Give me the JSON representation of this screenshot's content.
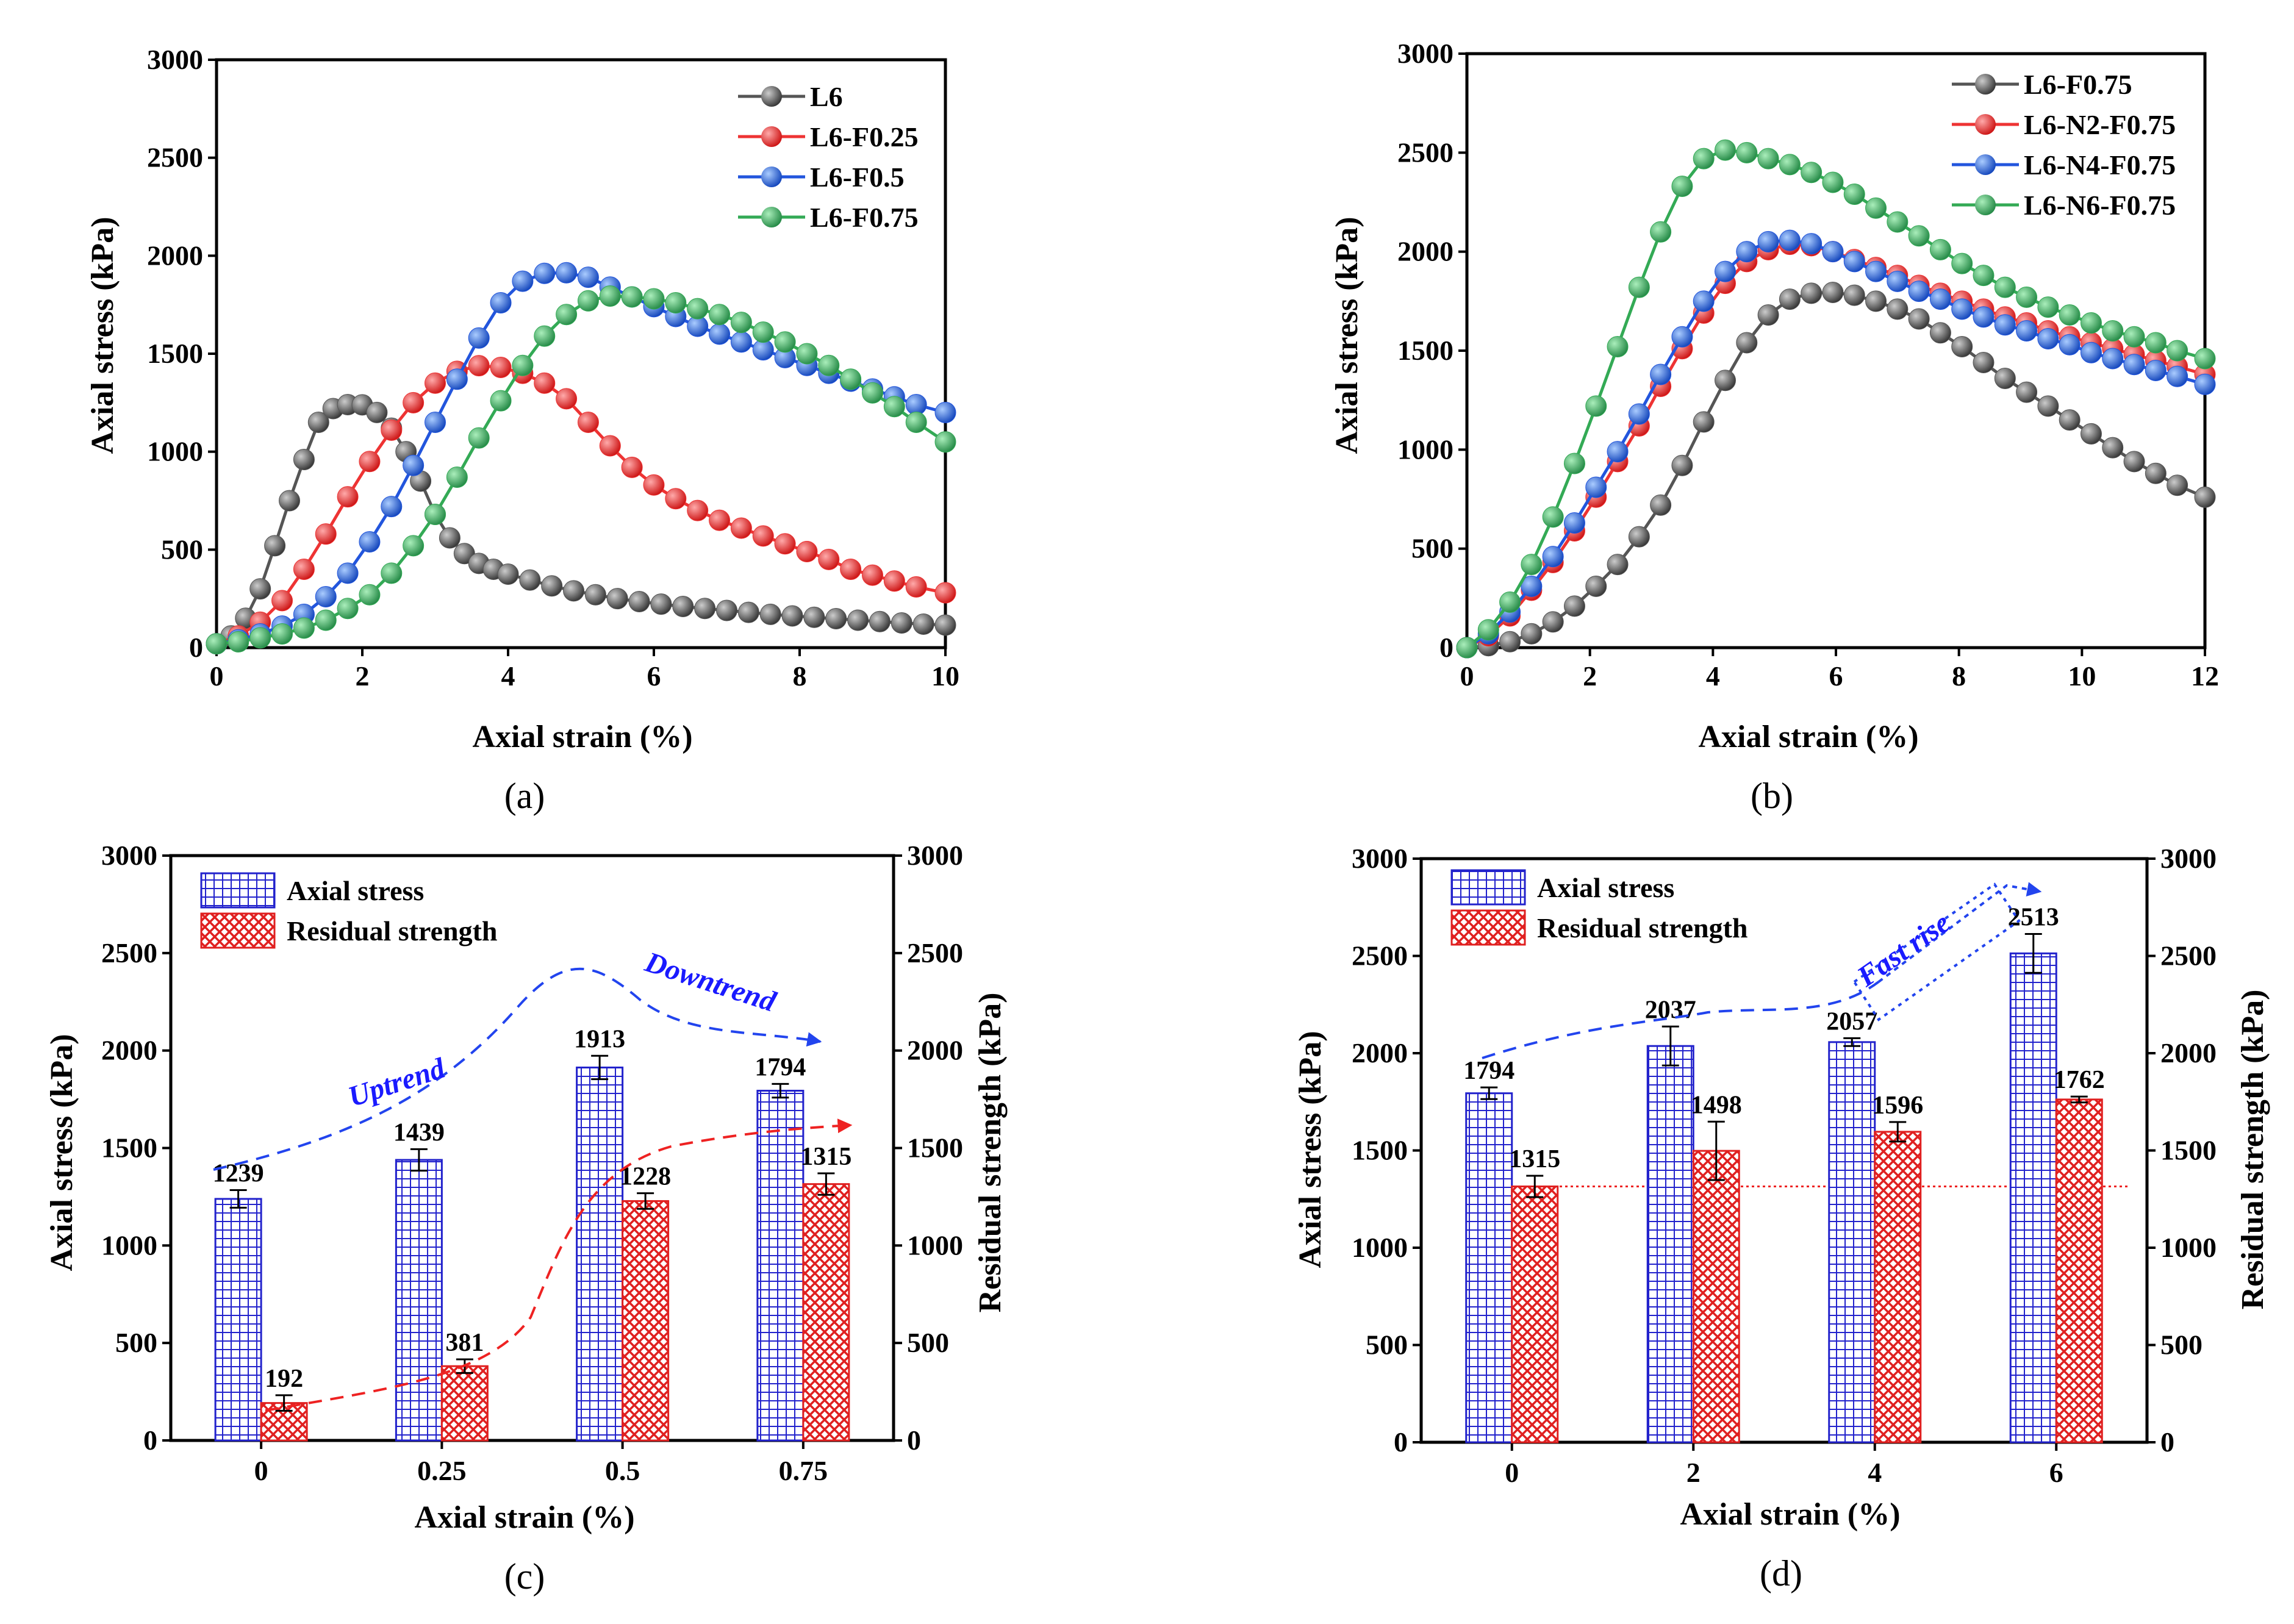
{
  "colors": {
    "black_series": "#555555",
    "red_series": "#ee3333",
    "blue_series": "#2255dd",
    "green_series": "#33aa55",
    "bar_blue": "#2222cc",
    "bar_red": "#e02020",
    "trend_blue": "#2244ee",
    "trend_red": "#ee2222"
  },
  "chart_data": [
    {
      "id": "a",
      "panel_label": "(a)",
      "type": "line",
      "xlabel": "Axial strain (%)",
      "ylabel": "Axial stress (kPa)",
      "xlim": [
        0,
        10
      ],
      "ylim": [
        0,
        3000
      ],
      "xticks": [
        0,
        2,
        4,
        6,
        8,
        10
      ],
      "yticks": [
        0,
        500,
        1000,
        1500,
        2000,
        2500,
        3000
      ],
      "legend_position": "top-right",
      "series": [
        {
          "name": "L6",
          "color_key": "black_series",
          "x": [
            0,
            0.2,
            0.4,
            0.6,
            0.8,
            1.0,
            1.2,
            1.4,
            1.6,
            1.8,
            2.0,
            2.2,
            2.4,
            2.6,
            2.8,
            3.0,
            3.2,
            3.4,
            3.6,
            3.8,
            4.0,
            4.3,
            4.6,
            4.9,
            5.2,
            5.5,
            5.8,
            6.1,
            6.4,
            6.7,
            7.0,
            7.3,
            7.6,
            7.9,
            8.2,
            8.5,
            8.8,
            9.1,
            9.4,
            9.7,
            10.0
          ],
          "y": [
            20,
            60,
            150,
            300,
            520,
            750,
            960,
            1150,
            1220,
            1240,
            1239,
            1200,
            1120,
            1000,
            850,
            680,
            560,
            480,
            430,
            400,
            375,
            345,
            315,
            290,
            270,
            250,
            235,
            222,
            210,
            200,
            190,
            180,
            170,
            162,
            155,
            148,
            140,
            133,
            126,
            120,
            115
          ]
        },
        {
          "name": "L6-F0.25",
          "color_key": "red_series",
          "x": [
            0,
            0.3,
            0.6,
            0.9,
            1.2,
            1.5,
            1.8,
            2.1,
            2.4,
            2.7,
            3.0,
            3.3,
            3.6,
            3.9,
            4.2,
            4.5,
            4.8,
            5.1,
            5.4,
            5.7,
            6.0,
            6.3,
            6.6,
            6.9,
            7.2,
            7.5,
            7.8,
            8.1,
            8.4,
            8.7,
            9.0,
            9.3,
            9.6,
            10.0
          ],
          "y": [
            20,
            60,
            130,
            240,
            400,
            580,
            770,
            950,
            1110,
            1250,
            1350,
            1410,
            1439,
            1430,
            1400,
            1350,
            1270,
            1150,
            1030,
            920,
            830,
            760,
            700,
            650,
            610,
            570,
            530,
            490,
            450,
            400,
            370,
            340,
            310,
            280
          ]
        },
        {
          "name": "L6-F0.5",
          "color_key": "blue_series",
          "x": [
            0,
            0.3,
            0.6,
            0.9,
            1.2,
            1.5,
            1.8,
            2.1,
            2.4,
            2.7,
            3.0,
            3.3,
            3.6,
            3.9,
            4.2,
            4.5,
            4.8,
            5.1,
            5.4,
            5.7,
            6.0,
            6.3,
            6.6,
            6.9,
            7.2,
            7.5,
            7.8,
            8.1,
            8.4,
            8.7,
            9.0,
            9.3,
            9.6,
            10.0
          ],
          "y": [
            20,
            40,
            70,
            110,
            170,
            260,
            380,
            540,
            720,
            930,
            1150,
            1370,
            1580,
            1760,
            1870,
            1910,
            1913,
            1890,
            1840,
            1790,
            1740,
            1690,
            1640,
            1600,
            1560,
            1520,
            1480,
            1440,
            1400,
            1360,
            1320,
            1280,
            1240,
            1200
          ]
        },
        {
          "name": "L6-F0.75",
          "color_key": "green_series",
          "x": [
            0,
            0.3,
            0.6,
            0.9,
            1.2,
            1.5,
            1.8,
            2.1,
            2.4,
            2.7,
            3.0,
            3.3,
            3.6,
            3.9,
            4.2,
            4.5,
            4.8,
            5.1,
            5.4,
            5.7,
            6.0,
            6.3,
            6.6,
            6.9,
            7.2,
            7.5,
            7.8,
            8.1,
            8.4,
            8.7,
            9.0,
            9.3,
            9.6,
            10.0
          ],
          "y": [
            20,
            30,
            50,
            70,
            100,
            140,
            200,
            270,
            380,
            520,
            680,
            870,
            1070,
            1260,
            1440,
            1590,
            1700,
            1770,
            1794,
            1790,
            1780,
            1760,
            1730,
            1700,
            1660,
            1610,
            1560,
            1500,
            1440,
            1370,
            1300,
            1230,
            1150,
            1050
          ]
        }
      ]
    },
    {
      "id": "b",
      "panel_label": "(b)",
      "type": "line",
      "xlabel": "Axial strain (%)",
      "ylabel": "Axial stress (kPa)",
      "xlim": [
        0,
        12
      ],
      "ylim": [
        0,
        3000
      ],
      "xticks": [
        0,
        2,
        4,
        6,
        8,
        10,
        12
      ],
      "yticks": [
        0,
        500,
        1000,
        1500,
        2000,
        2500,
        3000
      ],
      "legend_position": "top-right",
      "series": [
        {
          "name": "L6-F0.75",
          "color_key": "black_series",
          "x": [
            0,
            0.35,
            0.7,
            1.05,
            1.4,
            1.75,
            2.1,
            2.45,
            2.8,
            3.15,
            3.5,
            3.85,
            4.2,
            4.55,
            4.9,
            5.25,
            5.6,
            5.95,
            6.3,
            6.65,
            7.0,
            7.35,
            7.7,
            8.05,
            8.4,
            8.75,
            9.1,
            9.45,
            9.8,
            10.15,
            10.5,
            10.85,
            11.2,
            11.55,
            12.0
          ],
          "y": [
            0,
            10,
            30,
            70,
            130,
            210,
            310,
            420,
            560,
            720,
            920,
            1140,
            1350,
            1540,
            1680,
            1760,
            1790,
            1794,
            1780,
            1750,
            1710,
            1660,
            1590,
            1520,
            1440,
            1360,
            1290,
            1220,
            1150,
            1080,
            1010,
            940,
            880,
            820,
            760
          ]
        },
        {
          "name": "L6-N2-F0.75",
          "color_key": "red_series",
          "x": [
            0,
            0.35,
            0.7,
            1.05,
            1.4,
            1.75,
            2.1,
            2.45,
            2.8,
            3.15,
            3.5,
            3.85,
            4.2,
            4.55,
            4.9,
            5.25,
            5.6,
            5.95,
            6.3,
            6.65,
            7.0,
            7.35,
            7.7,
            8.05,
            8.4,
            8.75,
            9.1,
            9.45,
            9.8,
            10.15,
            10.5,
            10.85,
            11.2,
            11.55,
            12.0
          ],
          "y": [
            0,
            60,
            160,
            290,
            430,
            590,
            760,
            940,
            1120,
            1320,
            1510,
            1690,
            1840,
            1950,
            2010,
            2037,
            2030,
            2000,
            1960,
            1920,
            1880,
            1830,
            1790,
            1750,
            1710,
            1670,
            1640,
            1600,
            1570,
            1540,
            1510,
            1480,
            1450,
            1420,
            1380
          ]
        },
        {
          "name": "L6-N4-F0.75",
          "color_key": "blue_series",
          "x": [
            0,
            0.35,
            0.7,
            1.05,
            1.4,
            1.75,
            2.1,
            2.45,
            2.8,
            3.15,
            3.5,
            3.85,
            4.2,
            4.55,
            4.9,
            5.25,
            5.6,
            5.95,
            6.3,
            6.65,
            7.0,
            7.35,
            7.7,
            8.05,
            8.4,
            8.75,
            9.1,
            9.45,
            9.8,
            10.15,
            10.5,
            10.85,
            11.2,
            11.55,
            12.0
          ],
          "y": [
            0,
            70,
            180,
            310,
            460,
            630,
            810,
            990,
            1180,
            1380,
            1570,
            1750,
            1900,
            2000,
            2050,
            2057,
            2040,
            2000,
            1950,
            1900,
            1850,
            1800,
            1760,
            1710,
            1670,
            1630,
            1600,
            1560,
            1530,
            1490,
            1460,
            1430,
            1400,
            1370,
            1330
          ]
        },
        {
          "name": "L6-N6-F0.75",
          "color_key": "green_series",
          "x": [
            0,
            0.35,
            0.7,
            1.05,
            1.4,
            1.75,
            2.1,
            2.45,
            2.8,
            3.15,
            3.5,
            3.85,
            4.2,
            4.55,
            4.9,
            5.25,
            5.6,
            5.95,
            6.3,
            6.65,
            7.0,
            7.35,
            7.7,
            8.05,
            8.4,
            8.75,
            9.1,
            9.45,
            9.8,
            10.15,
            10.5,
            10.85,
            11.2,
            11.55,
            12.0
          ],
          "y": [
            0,
            90,
            230,
            420,
            660,
            930,
            1220,
            1520,
            1820,
            2100,
            2330,
            2470,
            2513,
            2500,
            2470,
            2440,
            2400,
            2350,
            2290,
            2220,
            2150,
            2080,
            2010,
            1940,
            1880,
            1820,
            1770,
            1720,
            1680,
            1640,
            1600,
            1570,
            1540,
            1500,
            1460
          ]
        }
      ]
    },
    {
      "id": "c",
      "panel_label": "(c)",
      "type": "bar",
      "xlabel": "Axial strain (%)",
      "ylabel": "Axial stress (kPa)",
      "ylabel_right": "Residual strength (kPa)",
      "categories": [
        "0",
        "0.25",
        "0.5",
        "0.75"
      ],
      "ylim": [
        0,
        3000
      ],
      "yticks": [
        0,
        500,
        1000,
        1500,
        2000,
        2500,
        3000
      ],
      "legend_position": "top-left",
      "series": [
        {
          "name": "Axial stress",
          "color_key": "bar_blue",
          "pattern": "grid",
          "values": [
            1239,
            1439,
            1913,
            1794
          ],
          "errors": [
            45,
            55,
            60,
            35
          ]
        },
        {
          "name": "Residual strength",
          "color_key": "bar_red",
          "pattern": "crosshatch",
          "values": [
            192,
            381,
            1228,
            1315
          ],
          "errors": [
            40,
            35,
            40,
            55
          ]
        }
      ],
      "data_labels": {
        "Axial stress": [
          "1239",
          "1439",
          "1913",
          "1794"
        ],
        "Residual strength": [
          "192",
          "381",
          "1228",
          "1315"
        ]
      },
      "annotations": [
        "Uptrend",
        "Downtrend"
      ]
    },
    {
      "id": "d",
      "panel_label": "(d)",
      "type": "bar",
      "xlabel": "Axial strain (%)",
      "ylabel": "Axial stress (kPa)",
      "ylabel_right": "Residual strength (kPa)",
      "categories": [
        "0",
        "2",
        "4",
        "6"
      ],
      "ylim": [
        0,
        3000
      ],
      "yticks": [
        0,
        500,
        1000,
        1500,
        2000,
        2500,
        3000
      ],
      "legend_position": "top-left",
      "reference_line_value": 1315,
      "series": [
        {
          "name": "Axial stress",
          "color_key": "bar_blue",
          "pattern": "grid",
          "values": [
            1794,
            2037,
            2057,
            2513
          ],
          "errors": [
            30,
            100,
            20,
            100
          ]
        },
        {
          "name": "Residual strength",
          "color_key": "bar_red",
          "pattern": "crosshatch",
          "values": [
            1315,
            1498,
            1596,
            1762
          ],
          "errors": [
            55,
            150,
            50,
            15
          ]
        }
      ],
      "data_labels": {
        "Axial stress": [
          "1794",
          "2037",
          "2057",
          "2513"
        ],
        "Residual strength": [
          "1315",
          "1498",
          "1596",
          "1762"
        ]
      },
      "annotations": [
        "Fast rise"
      ]
    }
  ]
}
